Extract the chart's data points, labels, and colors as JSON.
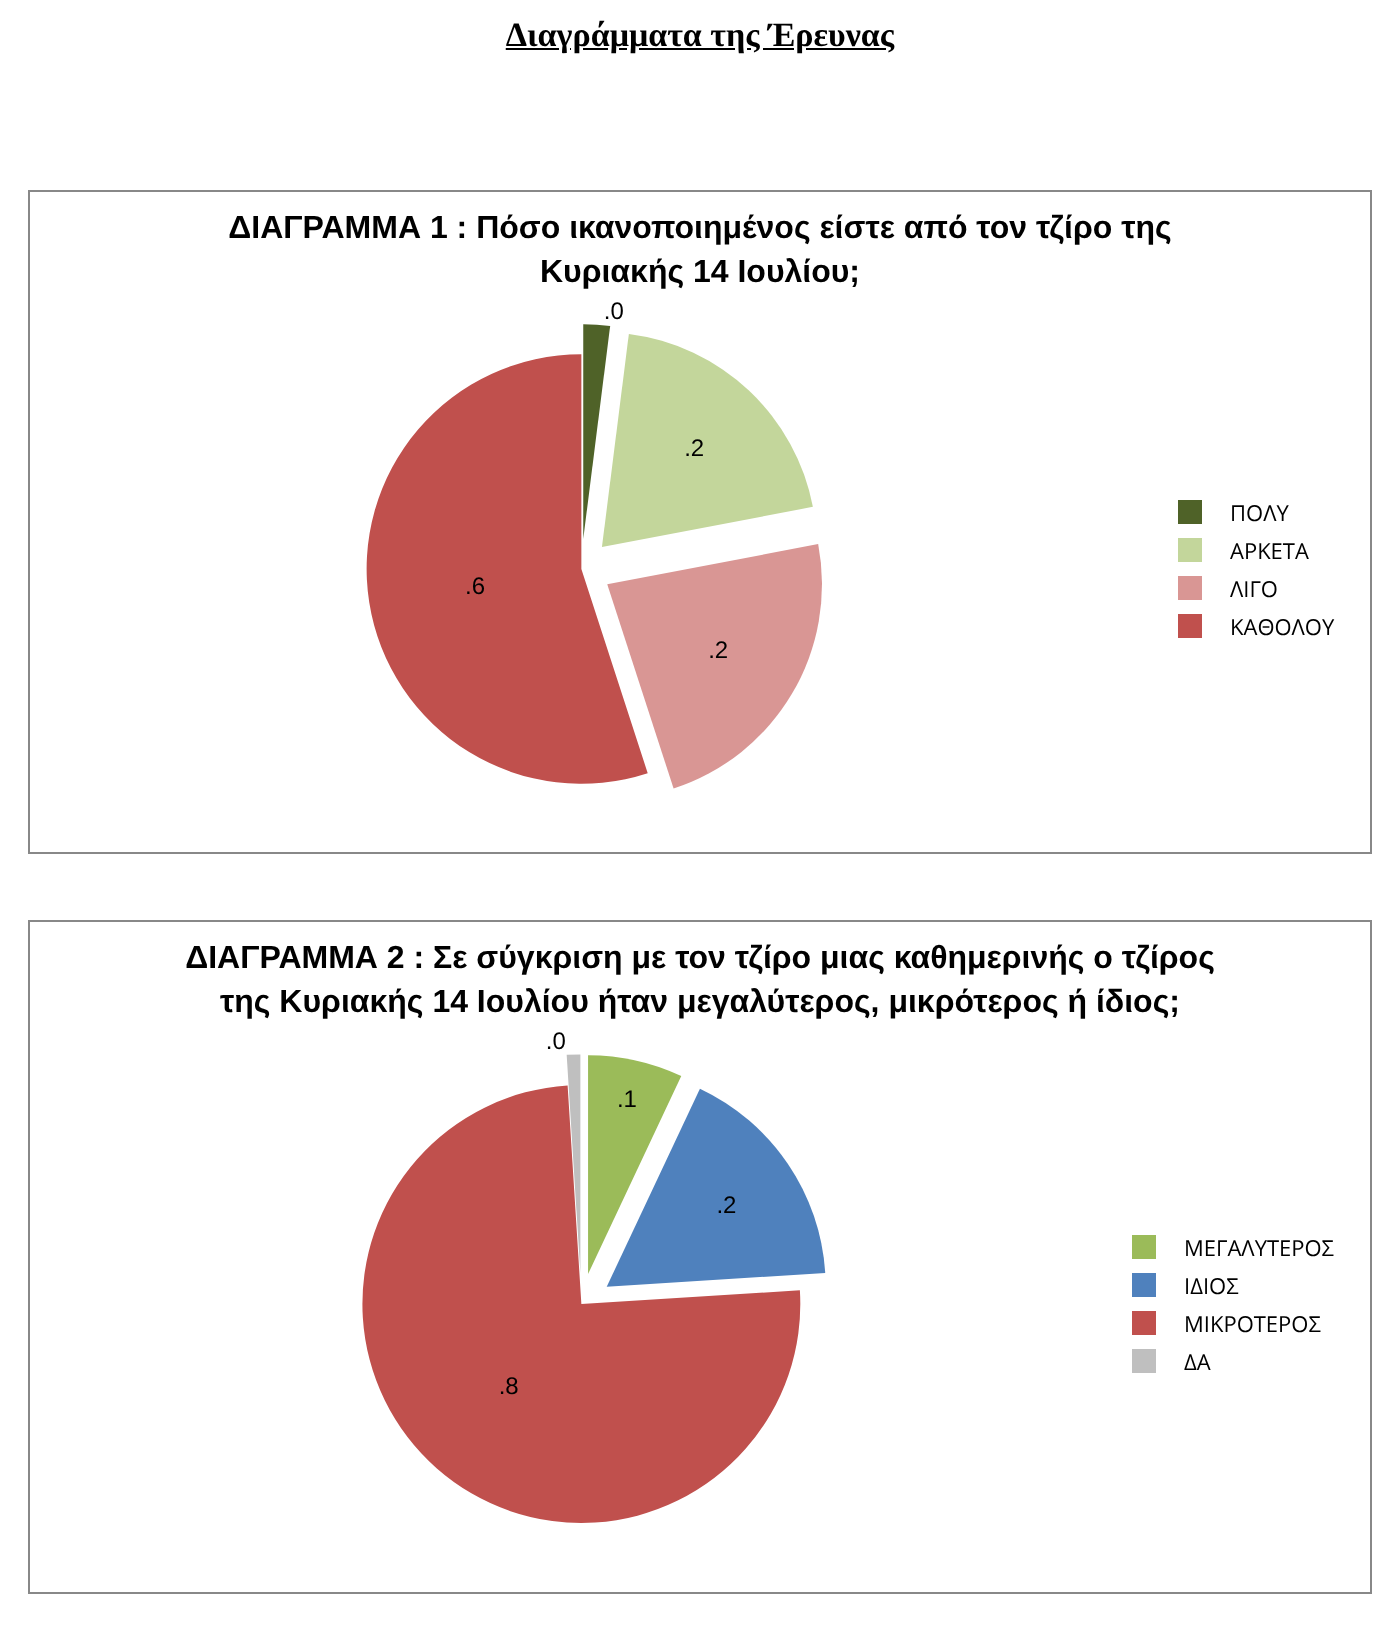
{
  "chart_data": [
    {
      "type": "pie",
      "title": "ΔΙΑΓΡΑΜΜΑ 1 : Πόσο ικανοποιημένος είστε από τον τζίρο της Κυριακής 14 Ιουλίου;",
      "annotations": [
        "Διαγράμματα  της Έρευνας"
      ],
      "categories": [
        "ΠΟΛΥ",
        "ΑΡΚΕΤΑ",
        "ΛΙΓΟ",
        "ΚΑΘΟΛΟΥ"
      ],
      "values": [
        0.02,
        0.2,
        0.23,
        0.55
      ],
      "value_labels": [
        ".0",
        ".2",
        ".2",
        ".6"
      ],
      "colors": [
        "#4f6228",
        "#c3d69b",
        "#d99694",
        "#c0504d"
      ],
      "legend": "right"
    },
    {
      "type": "pie",
      "title": "ΔΙΑΓΡΑΜΜΑ 2 : Σε σύγκριση με τον τζίρο μιας καθημερινής ο τζίρος της Κυριακής 14 Ιουλίου ήταν μεγαλύτερος, μικρότερος ή ίδιος;",
      "categories": [
        "ΜΕΓΑΛΥΤΕΡΟΣ",
        "ΙΔΙΟΣ",
        "ΜΙΚΡΟΤΕΡΟΣ",
        "ΔΑ"
      ],
      "values": [
        0.07,
        0.17,
        0.75,
        0.01
      ],
      "value_labels": [
        ".1",
        ".2",
        ".8",
        ".0"
      ],
      "colors": [
        "#9bbb59",
        "#4f81bd",
        "#c0504d",
        "#bfbfbf"
      ],
      "legend": "right"
    }
  ]
}
